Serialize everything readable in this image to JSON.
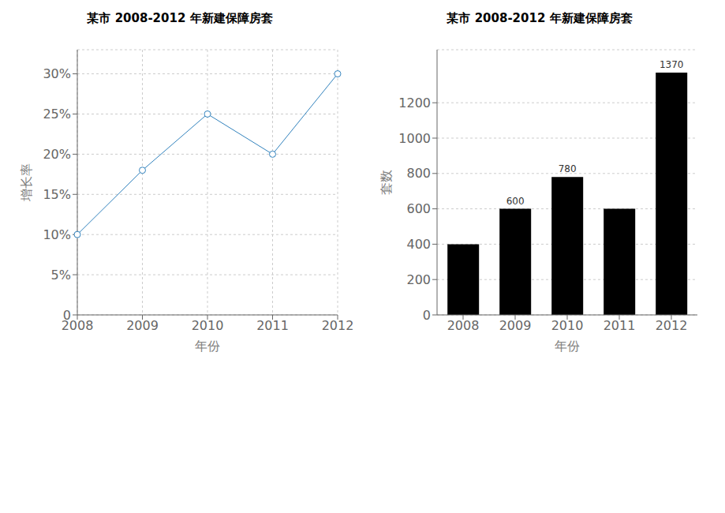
{
  "chart_data": [
    {
      "type": "line",
      "title": "某市 2008-2012 年新建保障房套",
      "x_label": "年份",
      "y_label": "增长率",
      "categories": [
        "2008",
        "2009",
        "2010",
        "2011",
        "2012"
      ],
      "values": [
        0.1,
        0.18,
        0.25,
        0.2,
        0.3
      ],
      "ylim": [
        0,
        0.33
      ],
      "yticks": [
        0,
        {
          "value": 0.05,
          "label": "5%"
        },
        {
          "value": 0.1,
          "label": "10%"
        },
        {
          "value": 0.15,
          "label": "15%"
        },
        {
          "value": 0.2,
          "label": "20%"
        },
        {
          "value": 0.25,
          "label": "25%"
        },
        {
          "value": 0.3,
          "label": "30%"
        }
      ],
      "grid": true,
      "marker": "circle"
    },
    {
      "type": "bar",
      "title": "某市 2008-2012 年新建保障房套",
      "x_label": "年份",
      "y_label": "套数",
      "categories": [
        "2008",
        "2009",
        "2010",
        "2011",
        "2012"
      ],
      "values": [
        400,
        600,
        780,
        600,
        1370
      ],
      "value_labels": [
        null,
        "600",
        "780",
        null,
        "1370"
      ],
      "data_labels": true,
      "ylim": [
        0,
        1500
      ],
      "yticks": [
        0,
        200,
        400,
        600,
        800,
        1000,
        1200
      ],
      "grid": "y"
    }
  ]
}
